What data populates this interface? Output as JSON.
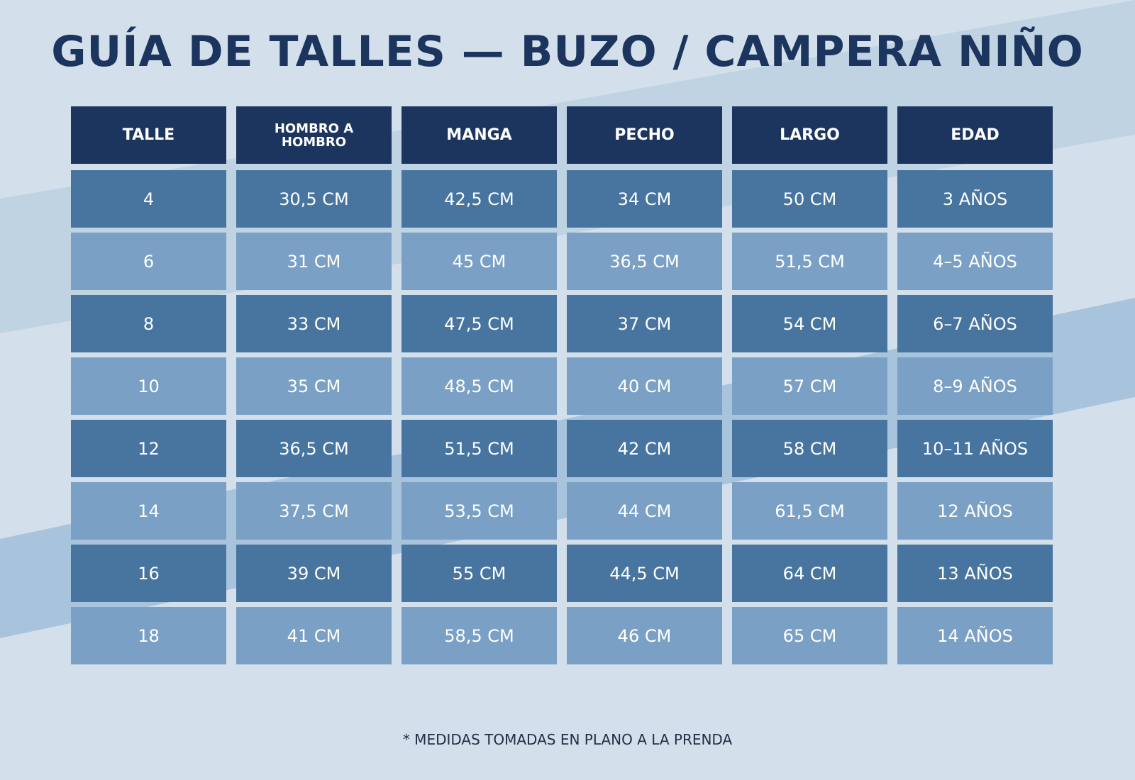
{
  "header": {
    "title": "GUÍA DE TALLES — BUZO / CAMPERA NIÑO"
  },
  "table": {
    "columns": [
      "TALLE",
      "HOMBRO A HOMBRO",
      "MANGA",
      "PECHO",
      "LARGO",
      "EDAD"
    ],
    "rows": [
      [
        "4",
        "30,5 CM",
        "42,5 CM",
        "34 CM",
        "50 CM",
        "3 AÑOS"
      ],
      [
        "6",
        "31 CM",
        "45 CM",
        "36,5 CM",
        "51,5 CM",
        "4–5 AÑOS"
      ],
      [
        "8",
        "33 CM",
        "47,5 CM",
        "37 CM",
        "54 CM",
        "6–7 AÑOS"
      ],
      [
        "10",
        "35 CM",
        "48,5 CM",
        "40 CM",
        "57 CM",
        "8–9 AÑOS"
      ],
      [
        "12",
        "36,5 CM",
        "51,5 CM",
        "42 CM",
        "58 CM",
        "10–11 AÑOS"
      ],
      [
        "14",
        "37,5 CM",
        "53,5 CM",
        "44 CM",
        "61,5 CM",
        "12 AÑOS"
      ],
      [
        "16",
        "39 CM",
        "55 CM",
        "44,5 CM",
        "64 CM",
        "13 AÑOS"
      ],
      [
        "18",
        "41 CM",
        "58,5 CM",
        "46 CM",
        "65 CM",
        "14 AÑOS"
      ]
    ]
  },
  "footer": {
    "note": "* MEDIDAS TOMADAS EN PLANO A LA PRENDA"
  }
}
